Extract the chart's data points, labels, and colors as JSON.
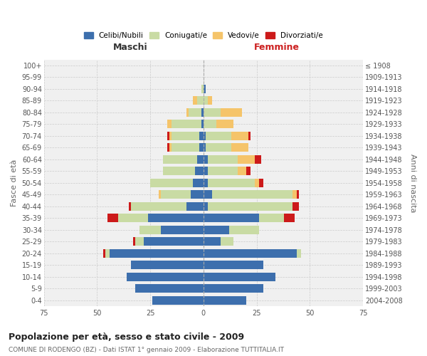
{
  "age_groups": [
    "100+",
    "95-99",
    "90-94",
    "85-89",
    "80-84",
    "75-79",
    "70-74",
    "65-69",
    "60-64",
    "55-59",
    "50-54",
    "45-49",
    "40-44",
    "35-39",
    "30-34",
    "25-29",
    "20-24",
    "15-19",
    "10-14",
    "5-9",
    "0-4"
  ],
  "birth_years": [
    "≤ 1908",
    "1909-1913",
    "1914-1918",
    "1919-1923",
    "1924-1928",
    "1929-1933",
    "1934-1938",
    "1939-1943",
    "1944-1948",
    "1949-1953",
    "1954-1958",
    "1959-1963",
    "1964-1968",
    "1969-1973",
    "1974-1978",
    "1979-1983",
    "1984-1988",
    "1989-1993",
    "1994-1998",
    "1999-2003",
    "2004-2008"
  ],
  "maschi_celibi": [
    0,
    0,
    0,
    0,
    1,
    1,
    2,
    2,
    3,
    4,
    5,
    6,
    8,
    26,
    20,
    28,
    44,
    34,
    36,
    32,
    24
  ],
  "maschi_coniugati": [
    0,
    0,
    1,
    3,
    6,
    14,
    13,
    13,
    16,
    15,
    20,
    14,
    26,
    14,
    10,
    4,
    2,
    0,
    0,
    0,
    0
  ],
  "maschi_vedovi": [
    0,
    0,
    0,
    2,
    1,
    2,
    1,
    1,
    0,
    0,
    0,
    1,
    0,
    0,
    0,
    0,
    0,
    0,
    0,
    0,
    0
  ],
  "maschi_divorziati": [
    0,
    0,
    0,
    0,
    0,
    0,
    1,
    1,
    0,
    0,
    0,
    0,
    1,
    5,
    0,
    1,
    1,
    0,
    0,
    0,
    0
  ],
  "femmine_nubili": [
    0,
    0,
    1,
    0,
    0,
    0,
    1,
    1,
    2,
    2,
    2,
    4,
    2,
    26,
    12,
    8,
    44,
    28,
    34,
    28,
    20
  ],
  "femmine_coniugate": [
    0,
    0,
    0,
    2,
    8,
    6,
    12,
    12,
    14,
    14,
    22,
    38,
    40,
    12,
    14,
    6,
    2,
    0,
    0,
    0,
    0
  ],
  "femmine_vedove": [
    0,
    0,
    0,
    2,
    10,
    8,
    8,
    8,
    8,
    4,
    2,
    2,
    0,
    0,
    0,
    0,
    0,
    0,
    0,
    0,
    0
  ],
  "femmine_divorziate": [
    0,
    0,
    0,
    0,
    0,
    0,
    1,
    0,
    3,
    2,
    2,
    1,
    3,
    5,
    0,
    0,
    0,
    0,
    0,
    0,
    0
  ],
  "color_celibi": "#3d6fad",
  "color_coniugati": "#c9dba4",
  "color_vedovi": "#f5c46a",
  "color_divorziati": "#cc1a1a",
  "xlim": 75,
  "title": "Popolazione per età, sesso e stato civile - 2009",
  "subtitle": "COMUNE DI RODENGO (BZ) - Dati ISTAT 1° gennaio 2009 - Elaborazione TUTTITALIA.IT",
  "ylabel_left": "Fasce di età",
  "ylabel_right": "Anni di nascita",
  "header_maschi": "Maschi",
  "header_femmine": "Femmine",
  "legend_labels": [
    "Celibi/Nubili",
    "Coniugati/e",
    "Vedovi/e",
    "Divorziati/e"
  ],
  "bg_color": "#ffffff",
  "plot_bg": "#f0f0f0",
  "grid_color": "#cccccc"
}
